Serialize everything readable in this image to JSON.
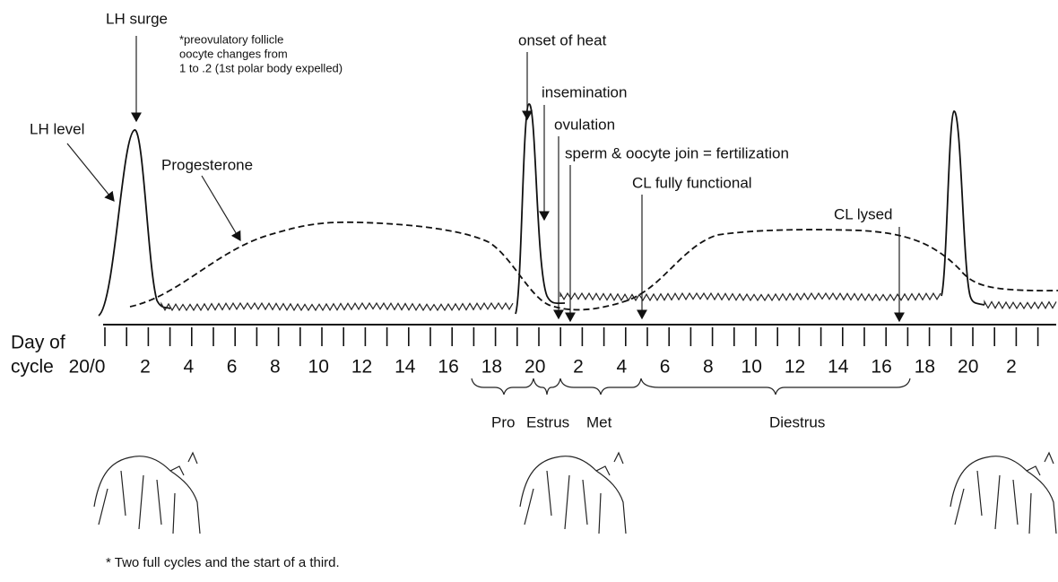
{
  "title_labels": {
    "lh_surge": "LH surge",
    "note": [
      "*preovulatory follicle",
      "oocyte changes from",
      "1  to .2  (1st polar body expelled)"
    ],
    "lh_level": "LH level",
    "progesterone": "Progesterone",
    "onset_of_heat": "onset of heat",
    "insemination": "insemination",
    "ovulation": "ovulation",
    "fertilization": "sperm & oocyte join = fertilization",
    "cl_functional": "CL fully functional",
    "cl_lysed": "CL lysed"
  },
  "axis": {
    "label": [
      "Day of",
      "cycle"
    ],
    "tick_labels": [
      "20/0",
      "2",
      "4",
      "6",
      "8",
      "10",
      "12",
      "14",
      "16",
      "18",
      "20",
      "2",
      "4",
      "6",
      "8",
      "10",
      "12",
      "14",
      "16",
      "18",
      "20",
      "2"
    ]
  },
  "phases": [
    "Pro",
    "Estrus",
    "Met",
    "Diestrus"
  ],
  "footnote": "* Two full cycles and the start of a third."
}
